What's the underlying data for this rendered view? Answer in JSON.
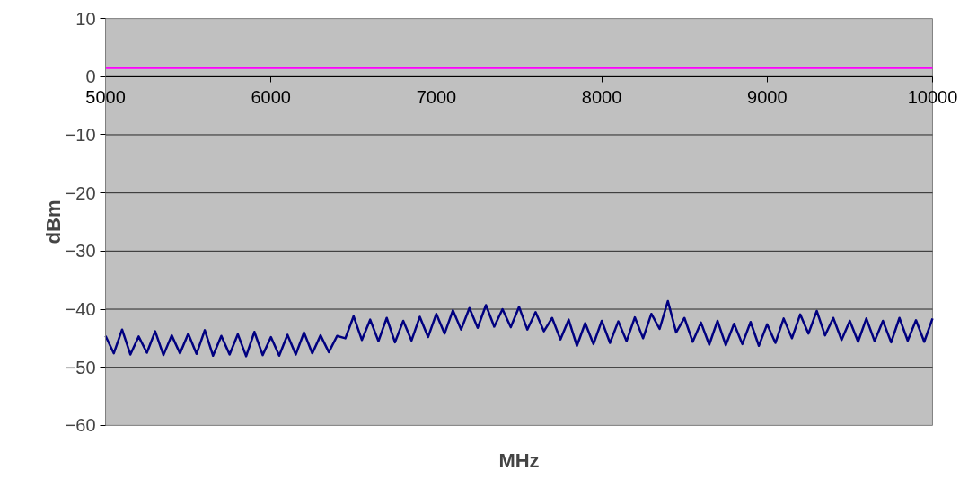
{
  "chart_data": {
    "type": "line",
    "xlabel": "MHz",
    "ylabel": "dBm",
    "xlim": [
      5000,
      10000
    ],
    "xticks": [
      5000,
      6000,
      7000,
      8000,
      9000,
      10000
    ],
    "ylim": [
      -60,
      10
    ],
    "yticks": [
      -60,
      -50,
      -40,
      -30,
      -20,
      -10,
      0,
      10
    ],
    "grid": "y",
    "marker": "none",
    "line_style": "solid",
    "x": [
      5000,
      5050,
      5100,
      5150,
      5200,
      5250,
      5300,
      5350,
      5400,
      5450,
      5500,
      5550,
      5600,
      5650,
      5700,
      5750,
      5800,
      5850,
      5900,
      5950,
      6000,
      6050,
      6100,
      6150,
      6200,
      6250,
      6300,
      6350,
      6400,
      6450,
      6500,
      6550,
      6600,
      6650,
      6700,
      6750,
      6800,
      6850,
      6900,
      6950,
      7000,
      7050,
      7100,
      7150,
      7200,
      7250,
      7300,
      7350,
      7400,
      7450,
      7500,
      7550,
      7600,
      7650,
      7700,
      7750,
      7800,
      7850,
      7900,
      7950,
      8000,
      8050,
      8100,
      8150,
      8200,
      8250,
      8300,
      8350,
      8400,
      8450,
      8500,
      8550,
      8600,
      8650,
      8700,
      8750,
      8800,
      8850,
      8900,
      8950,
      9000,
      9050,
      9100,
      9150,
      9200,
      9250,
      9300,
      9350,
      9400,
      9450,
      9500,
      9550,
      9600,
      9650,
      9700,
      9750,
      9800,
      9850,
      9900,
      9950,
      10000
    ],
    "series": [
      {
        "color": "#ff00ff",
        "x": [
          5000,
          10000
        ],
        "values": [
          1.5,
          1.5
        ]
      },
      {
        "color": "#000080",
        "values": [
          -44.6,
          -47.6,
          -43.5,
          -47.8,
          -44.7,
          -47.5,
          -43.8,
          -47.9,
          -44.5,
          -47.6,
          -44.2,
          -47.7,
          -43.6,
          -48.0,
          -44.6,
          -47.8,
          -44.3,
          -48.1,
          -43.9,
          -47.9,
          -44.8,
          -48.0,
          -44.4,
          -47.8,
          -44.0,
          -47.6,
          -44.5,
          -47.4,
          -44.6,
          -45.0,
          -41.2,
          -45.3,
          -41.8,
          -45.5,
          -41.5,
          -45.7,
          -42.0,
          -45.4,
          -41.3,
          -44.8,
          -40.8,
          -44.2,
          -40.2,
          -43.5,
          -39.8,
          -43.2,
          -39.3,
          -43.0,
          -40.0,
          -43.1,
          -39.6,
          -43.5,
          -40.5,
          -43.8,
          -41.5,
          -45.2,
          -41.8,
          -46.3,
          -42.4,
          -46.0,
          -42.0,
          -45.8,
          -42.1,
          -45.5,
          -41.4,
          -45.0,
          -40.8,
          -43.4,
          -38.6,
          -44.0,
          -41.5,
          -45.6,
          -42.3,
          -46.1,
          -42.0,
          -46.2,
          -42.5,
          -46.0,
          -42.2,
          -46.3,
          -42.6,
          -45.8,
          -41.6,
          -45.0,
          -40.9,
          -44.2,
          -40.3,
          -44.5,
          -41.5,
          -45.3,
          -42.0,
          -45.6,
          -41.6,
          -45.5,
          -42.0,
          -45.7,
          -41.5,
          -45.4,
          -41.9,
          -45.6,
          -41.6
        ]
      }
    ]
  }
}
